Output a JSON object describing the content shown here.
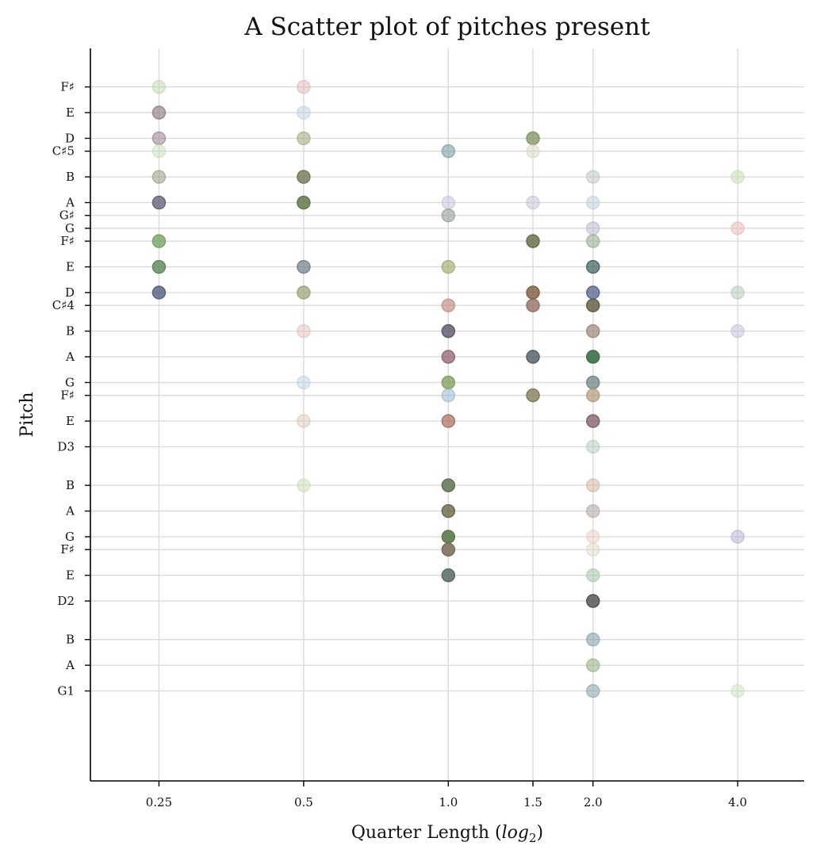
{
  "chart_data": {
    "type": "scatter",
    "title": "A Scatter plot of pitches present",
    "xlabel": "Quarter Length (",
    "xlabel_math": "log",
    "xlabel_sub": "2",
    "xlabel_close": ")",
    "ylabel": "Pitch",
    "x_scale": "log2",
    "xlim": [
      0.18,
      5.5
    ],
    "x_ticks": [
      0.25,
      0.5,
      1.0,
      1.5,
      2.0,
      4.0
    ],
    "x_tick_labels": [
      "0.25",
      "0.5",
      "1.0",
      "1.5",
      "2.0",
      "4.0"
    ],
    "y_unit": "midi",
    "ylim": [
      36,
      93
    ],
    "y_ticks": [
      {
        "value": 43,
        "label": "G1"
      },
      {
        "value": 45,
        "label": "A"
      },
      {
        "value": 47,
        "label": "B"
      },
      {
        "value": 50,
        "label": "D2"
      },
      {
        "value": 52,
        "label": "E"
      },
      {
        "value": 54,
        "label": "F♯"
      },
      {
        "value": 55,
        "label": "G"
      },
      {
        "value": 57,
        "label": "A"
      },
      {
        "value": 59,
        "label": "B"
      },
      {
        "value": 62,
        "label": "D3"
      },
      {
        "value": 64,
        "label": "E"
      },
      {
        "value": 66,
        "label": "F♯"
      },
      {
        "value": 67,
        "label": "G"
      },
      {
        "value": 69,
        "label": "A"
      },
      {
        "value": 71,
        "label": "B"
      },
      {
        "value": 73,
        "label": "C♯4"
      },
      {
        "value": 74,
        "label": "D"
      },
      {
        "value": 76,
        "label": "E"
      },
      {
        "value": 78,
        "label": "F♯"
      },
      {
        "value": 79,
        "label": "G"
      },
      {
        "value": 80,
        "label": "G♯"
      },
      {
        "value": 81,
        "label": "A"
      },
      {
        "value": 83,
        "label": "B"
      },
      {
        "value": 85,
        "label": "C♯5"
      },
      {
        "value": 86,
        "label": "D"
      },
      {
        "value": 88,
        "label": "E"
      },
      {
        "value": 90,
        "label": "F♯"
      }
    ],
    "grid": true,
    "points": [
      {
        "x": 0.25,
        "y": 90,
        "color": "#bcd3a4",
        "alpha": 0.45
      },
      {
        "x": 0.25,
        "y": 88,
        "color": "#8a7272",
        "alpha": 0.6
      },
      {
        "x": 0.25,
        "y": 86,
        "color": "#9a8090",
        "alpha": 0.55
      },
      {
        "x": 0.25,
        "y": 85,
        "color": "#c6dcb4",
        "alpha": 0.45
      },
      {
        "x": 0.25,
        "y": 83,
        "color": "#9c9c80",
        "alpha": 0.55
      },
      {
        "x": 0.25,
        "y": 81,
        "color": "#5c5a72",
        "alpha": 0.75
      },
      {
        "x": 0.25,
        "y": 78,
        "color": "#6f9e58",
        "alpha": 0.75
      },
      {
        "x": 0.25,
        "y": 76,
        "color": "#5b8758",
        "alpha": 0.8
      },
      {
        "x": 0.25,
        "y": 74,
        "color": "#545f80",
        "alpha": 0.8
      },
      {
        "x": 0.5,
        "y": 90,
        "color": "#dcb0b0",
        "alpha": 0.45
      },
      {
        "x": 0.5,
        "y": 88,
        "color": "#b7cce0",
        "alpha": 0.45
      },
      {
        "x": 0.5,
        "y": 86,
        "color": "#a8ac84",
        "alpha": 0.6
      },
      {
        "x": 0.5,
        "y": 83,
        "color": "#767654",
        "alpha": 0.8
      },
      {
        "x": 0.5,
        "y": 81,
        "color": "#5f7a4e",
        "alpha": 0.85
      },
      {
        "x": 0.5,
        "y": 76,
        "color": "#6f7e88",
        "alpha": 0.7
      },
      {
        "x": 0.5,
        "y": 74,
        "color": "#8e9c6a",
        "alpha": 0.65
      },
      {
        "x": 0.5,
        "y": 71,
        "color": "#e3b8b8",
        "alpha": 0.45
      },
      {
        "x": 0.5,
        "y": 67,
        "color": "#b7cde0",
        "alpha": 0.45
      },
      {
        "x": 0.5,
        "y": 64,
        "color": "#d6c4b0",
        "alpha": 0.45
      },
      {
        "x": 0.5,
        "y": 59,
        "color": "#c4dcb0",
        "alpha": 0.45
      },
      {
        "x": 1.0,
        "y": 85,
        "color": "#7f9fa4",
        "alpha": 0.6
      },
      {
        "x": 1.0,
        "y": 81,
        "color": "#c4c0d8",
        "alpha": 0.5
      },
      {
        "x": 1.0,
        "y": 80,
        "color": "#8e9494",
        "alpha": 0.55
      },
      {
        "x": 1.0,
        "y": 76,
        "color": "#9cad6e",
        "alpha": 0.65
      },
      {
        "x": 1.0,
        "y": 73,
        "color": "#c08a80",
        "alpha": 0.65
      },
      {
        "x": 1.0,
        "y": 71,
        "color": "#5d5468",
        "alpha": 0.8
      },
      {
        "x": 1.0,
        "y": 69,
        "color": "#8a5a68",
        "alpha": 0.7
      },
      {
        "x": 1.0,
        "y": 67,
        "color": "#7c9a58",
        "alpha": 0.75
      },
      {
        "x": 1.0,
        "y": 66,
        "color": "#9ab8d0",
        "alpha": 0.55
      },
      {
        "x": 1.0,
        "y": 64,
        "color": "#a0624e",
        "alpha": 0.65
      },
      {
        "x": 1.0,
        "y": 59,
        "color": "#5f7354",
        "alpha": 0.85
      },
      {
        "x": 1.0,
        "y": 57,
        "color": "#6b6548",
        "alpha": 0.8
      },
      {
        "x": 1.0,
        "y": 55,
        "color": "#5a7a48",
        "alpha": 0.9
      },
      {
        "x": 1.0,
        "y": 54,
        "color": "#7a6a58",
        "alpha": 0.85
      },
      {
        "x": 1.0,
        "y": 52,
        "color": "#566c60",
        "alpha": 0.85
      },
      {
        "x": 1.5,
        "y": 86,
        "color": "#7e9160",
        "alpha": 0.75
      },
      {
        "x": 1.5,
        "y": 85,
        "color": "#d8d0b8",
        "alpha": 0.45
      },
      {
        "x": 1.5,
        "y": 81,
        "color": "#c0c0d8",
        "alpha": 0.5
      },
      {
        "x": 1.5,
        "y": 78,
        "color": "#5f6a44",
        "alpha": 0.8
      },
      {
        "x": 1.5,
        "y": 74,
        "color": "#7e5a3c",
        "alpha": 0.8
      },
      {
        "x": 1.5,
        "y": 73,
        "color": "#8c6a5c",
        "alpha": 0.75
      },
      {
        "x": 1.5,
        "y": 69,
        "color": "#4e5c64",
        "alpha": 0.8
      },
      {
        "x": 1.5,
        "y": 66,
        "color": "#7c7454",
        "alpha": 0.75
      },
      {
        "x": 2.0,
        "y": 83,
        "color": "#b4c8b4",
        "alpha": 0.5
      },
      {
        "x": 2.0,
        "y": 81,
        "color": "#bcccdc",
        "alpha": 0.5
      },
      {
        "x": 2.0,
        "y": 79,
        "color": "#b8b4cc",
        "alpha": 0.5
      },
      {
        "x": 2.0,
        "y": 78,
        "color": "#8cac88",
        "alpha": 0.55
      },
      {
        "x": 2.0,
        "y": 76,
        "color": "#3e5c5c",
        "alpha": 0.7
      },
      {
        "x": 2.0,
        "y": 74,
        "color": "#56608c",
        "alpha": 0.75
      },
      {
        "x": 2.0,
        "y": 73,
        "color": "#5e5840",
        "alpha": 0.8
      },
      {
        "x": 2.0,
        "y": 71,
        "color": "#9c8478",
        "alpha": 0.7
      },
      {
        "x": 2.0,
        "y": 69,
        "color": "#3e6e48",
        "alpha": 0.9
      },
      {
        "x": 2.0,
        "y": 67,
        "color": "#6c8484",
        "alpha": 0.75
      },
      {
        "x": 2.0,
        "y": 66,
        "color": "#b49878",
        "alpha": 0.7
      },
      {
        "x": 2.0,
        "y": 64,
        "color": "#7c5a68",
        "alpha": 0.75
      },
      {
        "x": 2.0,
        "y": 62,
        "color": "#b4ccb4",
        "alpha": 0.5
      },
      {
        "x": 2.0,
        "y": 59,
        "color": "#d4b4a4",
        "alpha": 0.55
      },
      {
        "x": 2.0,
        "y": 57,
        "color": "#b4aca8",
        "alpha": 0.6
      },
      {
        "x": 2.0,
        "y": 55,
        "color": "#ecc8c0",
        "alpha": 0.45
      },
      {
        "x": 2.0,
        "y": 54,
        "color": "#dcd4c0",
        "alpha": 0.45
      },
      {
        "x": 2.0,
        "y": 52,
        "color": "#a8c4a8",
        "alpha": 0.55
      },
      {
        "x": 2.0,
        "y": 50,
        "color": "#4c4c4c",
        "alpha": 0.8
      },
      {
        "x": 2.0,
        "y": 47,
        "color": "#88a4ac",
        "alpha": 0.6
      },
      {
        "x": 2.0,
        "y": 45,
        "color": "#98b488",
        "alpha": 0.6
      },
      {
        "x": 2.0,
        "y": 43,
        "color": "#8eaab0",
        "alpha": 0.6
      },
      {
        "x": 4.0,
        "y": 83,
        "color": "#c4dcb0",
        "alpha": 0.5
      },
      {
        "x": 4.0,
        "y": 79,
        "color": "#e8b8b8",
        "alpha": 0.5
      },
      {
        "x": 4.0,
        "y": 74,
        "color": "#b4c8b4",
        "alpha": 0.5
      },
      {
        "x": 4.0,
        "y": 71,
        "color": "#c0c0d8",
        "alpha": 0.5
      },
      {
        "x": 4.0,
        "y": 55,
        "color": "#b8b4d4",
        "alpha": 0.55
      },
      {
        "x": 4.0,
        "y": 43,
        "color": "#c8e0b4",
        "alpha": 0.45
      }
    ]
  }
}
